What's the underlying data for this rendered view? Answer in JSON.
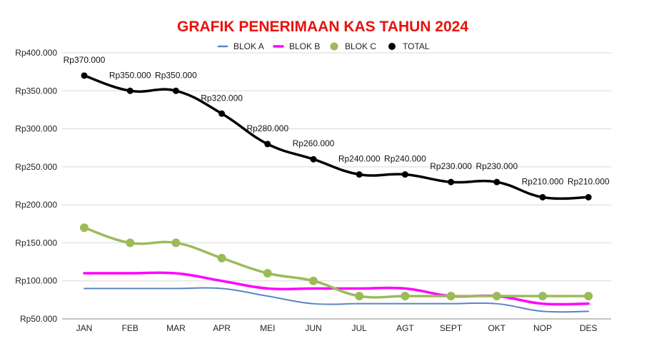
{
  "chart_data": {
    "type": "line",
    "title": "GRAFIK PENERIMAAN KAS TAHUN 2024",
    "xlabel": "",
    "ylabel": "",
    "categories": [
      "JAN",
      "FEB",
      "MAR",
      "APR",
      "MEI",
      "JUN",
      "JUL",
      "AGT",
      "SEPT",
      "OKT",
      "NOP",
      "DES"
    ],
    "ylim": [
      50000,
      400000
    ],
    "yticks": [
      50000,
      100000,
      150000,
      200000,
      250000,
      300000,
      350000,
      400000
    ],
    "ytick_labels": [
      "Rp50.000",
      "Rp100.000",
      "Rp150.000",
      "Rp200.000",
      "Rp250.000",
      "Rp300.000",
      "Rp350.000",
      "Rp400.000"
    ],
    "grid": true,
    "legend_position": "top",
    "series": [
      {
        "name": "BLOK A",
        "color": "#5b84c4",
        "markers": false,
        "values": [
          90000,
          90000,
          90000,
          90000,
          80000,
          70000,
          70000,
          70000,
          70000,
          70000,
          60000,
          60000
        ]
      },
      {
        "name": "BLOK B",
        "color": "#ff00ff",
        "markers": false,
        "values": [
          110000,
          110000,
          110000,
          100000,
          90000,
          90000,
          90000,
          90000,
          80000,
          80000,
          70000,
          70000
        ]
      },
      {
        "name": "BLOK C",
        "color": "#9bbb59",
        "markers": true,
        "values": [
          170000,
          150000,
          150000,
          130000,
          110000,
          100000,
          80000,
          80000,
          80000,
          80000,
          80000,
          80000
        ]
      },
      {
        "name": "TOTAL",
        "color": "#000000",
        "markers": true,
        "values": [
          370000,
          350000,
          350000,
          320000,
          280000,
          260000,
          240000,
          240000,
          230000,
          230000,
          210000,
          210000
        ],
        "data_labels": [
          "Rp370.000",
          "Rp350.000",
          "Rp350.000",
          "Rp320.000",
          "Rp280.000",
          "Rp260.000",
          "Rp240.000",
          "Rp240.000",
          "Rp230.000",
          "Rp230.000",
          "Rp210.000",
          "Rp210.000"
        ]
      }
    ]
  },
  "colors": {
    "title": "#e8120c",
    "grid": "#d9d9d9",
    "axis": "#888888"
  }
}
